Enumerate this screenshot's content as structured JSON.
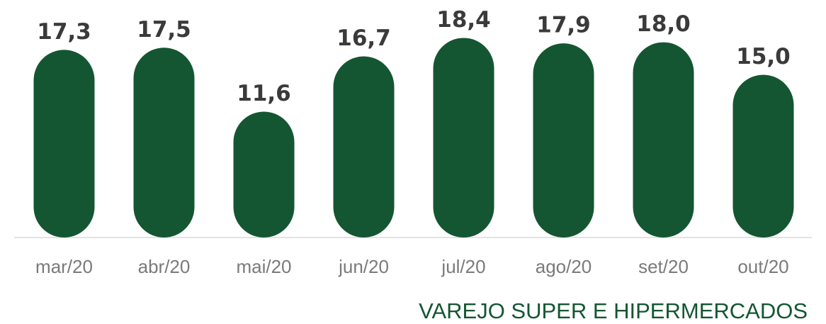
{
  "chart_data": {
    "type": "bar",
    "caption": "VAREJO SUPER E HIPERMERCADOS",
    "categories": [
      "mar/20",
      "abr/20",
      "mai/20",
      "jun/20",
      "jul/20",
      "ago/20",
      "set/20",
      "out/20"
    ],
    "values": [
      17.3,
      17.5,
      11.6,
      16.7,
      18.4,
      17.9,
      18.0,
      15.0
    ],
    "value_labels": [
      "17,3",
      "17,5",
      "11,6",
      "16,7",
      "18,4",
      "17,9",
      "18,0",
      "15,0"
    ],
    "color": "#145632",
    "ylim": [
      0,
      20
    ],
    "grid": false
  }
}
